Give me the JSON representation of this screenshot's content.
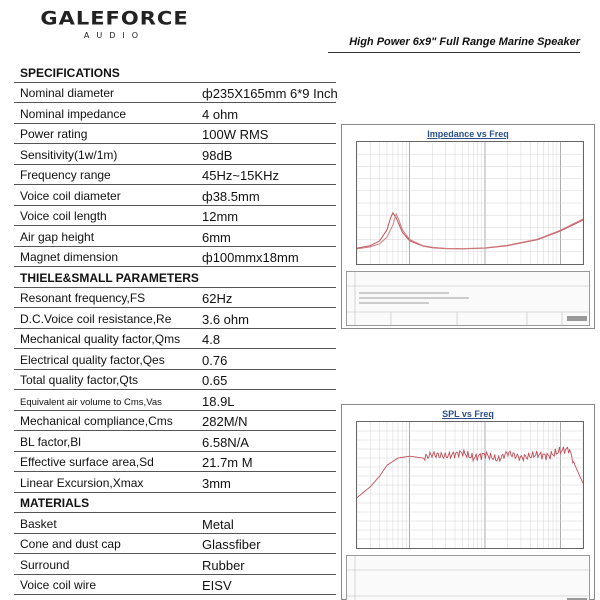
{
  "brand": {
    "name": "GALEFORCE",
    "sub": "AUDIO"
  },
  "subtitle": "High Power 6x9\" Full Range Marine Speaker",
  "table": [
    {
      "type": "header",
      "label": "SPECIFICATIONS"
    },
    {
      "label": "Nominal diameter",
      "value": "ф235X165mm 6*9 Inch"
    },
    {
      "label": "Nominal impedance",
      "value": "4  ohm"
    },
    {
      "label": "Power rating",
      "value": "100W  RMS"
    },
    {
      "label": "Sensitivity(1w/1m)",
      "value": "98dB"
    },
    {
      "label": "Frequency range",
      "value": "45Hz~15KHz"
    },
    {
      "label": "Voice coil diameter",
      "value": "ф38.5mm"
    },
    {
      "label": "Voice coil length",
      "value": "12mm"
    },
    {
      "label": "Air gap height",
      "value": "6mm"
    },
    {
      "label": "Magnet dimension",
      "value": "ф100mmx18mm"
    },
    {
      "type": "header",
      "label": "THIELE&SMALL PARAMETERS"
    },
    {
      "label": "Resonant frequency,FS",
      "value": "62Hz"
    },
    {
      "label": "D.C.Voice coil resistance,Re",
      "value": "3.6 ohm"
    },
    {
      "label": "Mechanical quality factor,Qms",
      "value": "4.8"
    },
    {
      "label": "Electrical quality factor,Qes",
      "value": "0.76"
    },
    {
      "label": "Total quality factor,Qts",
      "value": "0.65"
    },
    {
      "label": "Equivalent air volume to Cms,Vas",
      "value": "18.9L",
      "small": true
    },
    {
      "label": "Mechanical compliance,Cms",
      "value": "282M/N"
    },
    {
      "label": "BL factor,Bl",
      "value": "6.58N/A"
    },
    {
      "label": "Effective surface area,Sd",
      "value": "21.7m M"
    },
    {
      "label": "Linear Excursion,Xmax",
      "value": "3mm"
    },
    {
      "type": "header",
      "label": "MATERIALS"
    },
    {
      "label": "Basket",
      "value": "Metal"
    },
    {
      "label": "Cone and dust cap",
      "value": "Glassfiber"
    },
    {
      "label": "Surround",
      "value": "Rubber"
    },
    {
      "label": "Voice coil wire",
      "value": "EISV"
    },
    {
      "label": "Voice coil bobbin",
      "value": "Kapton"
    }
  ],
  "graphs": {
    "impedance": {
      "title": "Impedance vs Freq"
    },
    "spl": {
      "title": "SPL vs Freq"
    }
  },
  "chart_data": [
    {
      "type": "line",
      "title": "Impedance vs Freq",
      "x_scale": "log",
      "xlim": [
        20,
        20000
      ],
      "series": [
        {
          "x": [
            20,
            30,
            40,
            50,
            56,
            60,
            66,
            80,
            100,
            150,
            200,
            300,
            500,
            1000,
            2000,
            5000,
            10000,
            20000
          ],
          "y": [
            6.5,
            7.5,
            9.5,
            14,
            19,
            21,
            19,
            13,
            9.5,
            7.3,
            6.7,
            6.3,
            6.2,
            6.5,
            7.5,
            10,
            13.5,
            18
          ]
        },
        {
          "x": [
            20,
            30,
            40,
            50,
            60,
            66,
            72,
            80,
            100,
            150,
            200,
            300,
            500,
            1000,
            2000,
            5000,
            10000,
            20000
          ],
          "y": [
            6.2,
            7.0,
            8.3,
            11,
            16,
            20.5,
            18,
            14,
            10,
            7.5,
            6.9,
            6.4,
            6.3,
            6.6,
            7.7,
            10.2,
            13.8,
            18.5
          ]
        }
      ]
    },
    {
      "type": "line",
      "title": "SPL vs Freq",
      "x_scale": "log",
      "xlim": [
        20,
        20000
      ],
      "series": [
        {
          "x": [
            20,
            30,
            40,
            50,
            70,
            100,
            150,
            200,
            300,
            500,
            700,
            1000,
            1500,
            2000,
            3000,
            5000,
            7000,
            10000,
            13000,
            16000,
            20000
          ],
          "y": [
            68,
            74,
            80,
            86,
            90,
            91,
            90,
            92,
            91,
            93,
            90,
            92,
            89,
            93,
            90,
            92,
            91,
            94,
            95,
            85,
            76
          ]
        }
      ]
    }
  ]
}
